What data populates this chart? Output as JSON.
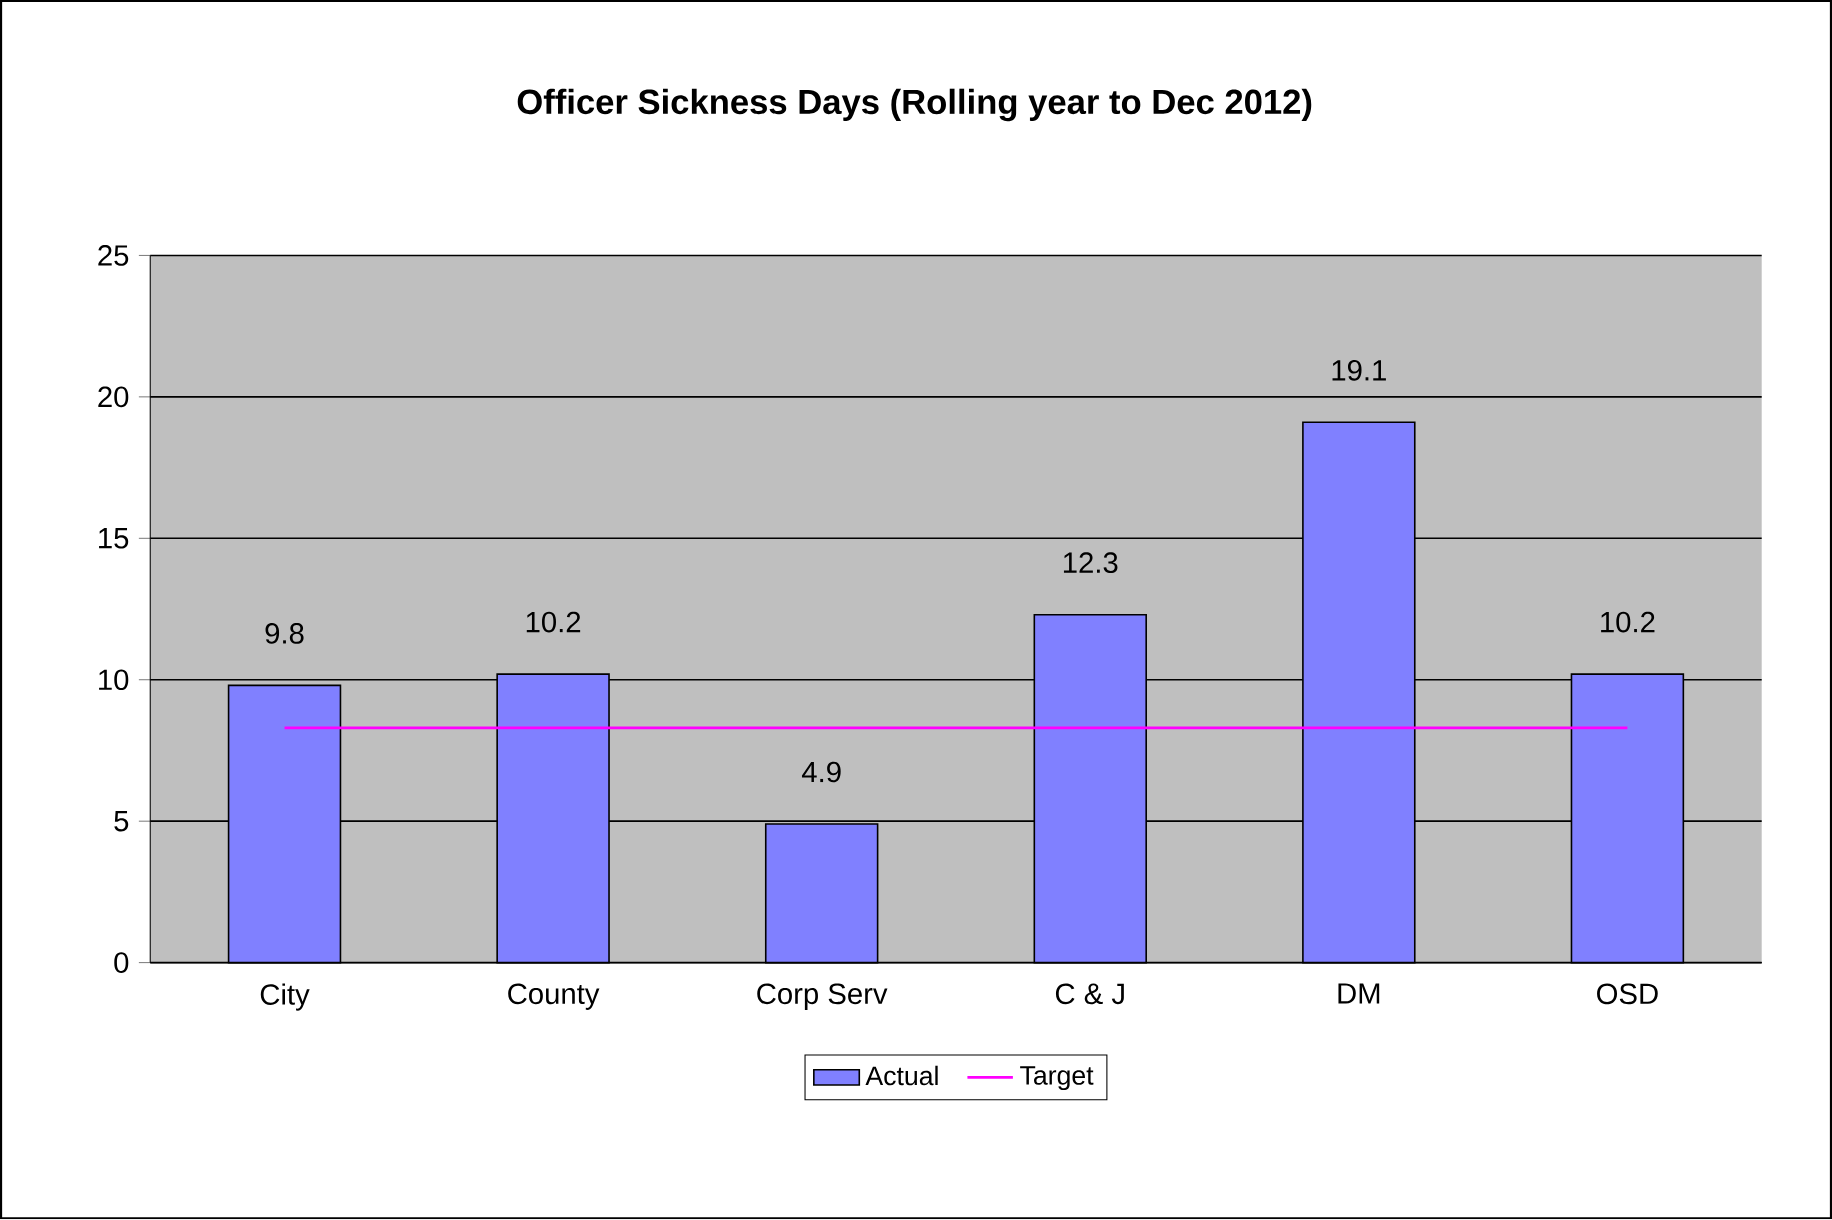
{
  "chart_data": {
    "type": "bar",
    "title": "Officer Sickness Days (Rolling year to Dec 2012)",
    "categories": [
      "City",
      "County",
      "Corp Serv",
      "C & J",
      "DM",
      "OSD"
    ],
    "series": [
      {
        "name": "Actual",
        "color": "#8080ff",
        "values": [
          9.8,
          10.2,
          4.9,
          12.3,
          19.1,
          10.2
        ],
        "value_labels": [
          "9.8",
          "10.2",
          "4.9",
          "12.3",
          "19.1",
          "10.2"
        ]
      },
      {
        "name": "Target",
        "type": "line",
        "color": "#ff00ff",
        "values": [
          8.3,
          8.3,
          8.3,
          8.3,
          8.3,
          8.3
        ]
      }
    ],
    "ylim": [
      0,
      25
    ],
    "yticks": [
      0,
      5,
      10,
      15,
      20,
      25
    ],
    "grid": "y",
    "legend": "bottom",
    "marker": "none"
  }
}
